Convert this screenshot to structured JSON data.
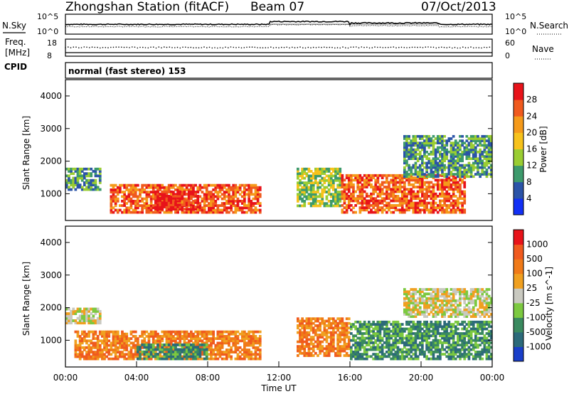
{
  "header": {
    "station": "Zhongshan Station (fitACF)",
    "beam": "Beam 07",
    "date": "07/Oct/2013"
  },
  "noise_panel": {
    "left_label": "N.Sky",
    "right_label": "N.Search",
    "left_ticks": [
      "10^5",
      "10^0"
    ],
    "right_ticks": [
      "10^5",
      "10^0"
    ]
  },
  "freq_panel": {
    "left_label_line1": "Freq.",
    "left_label_line2": "[MHz]",
    "right_label": "Nave",
    "left_ticks": [
      "18",
      "8"
    ],
    "right_ticks": [
      "60",
      "0"
    ]
  },
  "cpid_panel": {
    "label": "CPID",
    "mode": "normal (fast stereo) 153"
  },
  "chart_data": [
    {
      "type": "heatmap",
      "title": "",
      "quantity": "Power",
      "ylabel": "Slant Range [km]",
      "ylim": [
        180,
        4500
      ],
      "yticks": [
        1000,
        2000,
        3000,
        4000
      ],
      "colorbar_label": "Power [dB]",
      "colorbar_ticks": [
        4,
        8,
        12,
        16,
        20,
        24,
        28
      ],
      "colorbar_colors": [
        "#1230f5",
        "#2b54a8",
        "#3d9a6c",
        "#9acd32",
        "#f7c21b",
        "#f59a1a",
        "#f05a1e",
        "#e8131a"
      ],
      "regions": [
        {
          "x": [
            0.0,
            2.0
          ],
          "r": [
            1100,
            1800
          ],
          "level": 2
        },
        {
          "x": [
            2.5,
            11.0
          ],
          "r": [
            400,
            1300
          ],
          "level": 6
        },
        {
          "x": [
            5.0,
            7.5
          ],
          "r": [
            500,
            1100
          ],
          "level": 7
        },
        {
          "x": [
            13.0,
            15.5
          ],
          "r": [
            600,
            1800
          ],
          "level": 3
        },
        {
          "x": [
            15.5,
            22.5
          ],
          "r": [
            400,
            1600
          ],
          "level": 6
        },
        {
          "x": [
            19.0,
            24.0
          ],
          "r": [
            1500,
            2800
          ],
          "level": 2
        }
      ]
    },
    {
      "type": "heatmap",
      "title": "",
      "quantity": "Velocity",
      "xlabel": "Time UT",
      "ylabel": "Slant Range [km]",
      "ylim": [
        180,
        4500
      ],
      "yticks": [
        1000,
        2000,
        3000,
        4000
      ],
      "xticks": [
        "00:00",
        "04:00",
        "08:00",
        "12:00",
        "16:00",
        "20:00",
        "00:00"
      ],
      "colorbar_label": "Velocity [m s^-1]",
      "colorbar_ticks": [
        1000,
        500,
        100,
        25,
        -25,
        -100,
        -500,
        -1000
      ],
      "colorbar_colors": [
        "#1a3fc9",
        "#2c6a7a",
        "#3a8a5f",
        "#7cc940",
        "#c9c9c0",
        "#f0a020",
        "#f07a18",
        "#f05a1e",
        "#e8131a"
      ],
      "regions": [
        {
          "x": [
            0.0,
            2.0
          ],
          "r": [
            1500,
            2000
          ],
          "level": 4
        },
        {
          "x": [
            0.5,
            11.0
          ],
          "r": [
            400,
            1300
          ],
          "level": 6
        },
        {
          "x": [
            4.0,
            8.0
          ],
          "r": [
            400,
            900
          ],
          "level": 2
        },
        {
          "x": [
            13.0,
            16.0
          ],
          "r": [
            500,
            1700
          ],
          "level": 6
        },
        {
          "x": [
            16.0,
            24.0
          ],
          "r": [
            400,
            1600
          ],
          "level": 2
        },
        {
          "x": [
            19.0,
            24.0
          ],
          "r": [
            1700,
            2600
          ],
          "level": 4
        }
      ]
    }
  ]
}
